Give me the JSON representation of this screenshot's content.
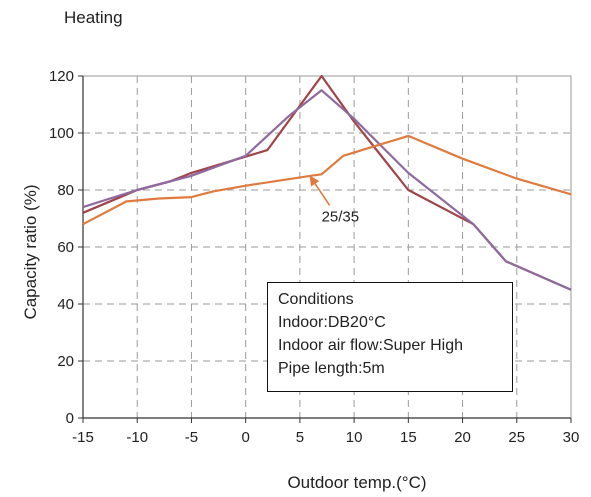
{
  "chart_data": {
    "type": "line",
    "title": "Heating",
    "xlabel": "Outdoor temp.(°C)",
    "ylabel": "Capacity ratio (%)",
    "xlim": [
      -15,
      30
    ],
    "ylim": [
      0,
      120
    ],
    "xticks": [
      -15,
      -10,
      -5,
      0,
      5,
      10,
      15,
      20,
      25,
      30
    ],
    "yticks": [
      0,
      20,
      40,
      60,
      80,
      100,
      120
    ],
    "grid": true,
    "series": [
      {
        "color": "#a0444a",
        "points": [
          [
            -15,
            72
          ],
          [
            -10,
            80
          ],
          [
            -7,
            83
          ],
          [
            -5,
            86
          ],
          [
            2,
            94
          ],
          [
            7,
            120
          ],
          [
            10,
            104
          ],
          [
            15,
            80
          ],
          [
            21,
            68
          ],
          [
            24,
            55
          ],
          [
            30,
            45
          ]
        ]
      },
      {
        "color": "#8e6a9e",
        "points": [
          [
            -15,
            74
          ],
          [
            -10,
            80
          ],
          [
            -5,
            85
          ],
          [
            0,
            92
          ],
          [
            4,
            106
          ],
          [
            7,
            115
          ],
          [
            10,
            105
          ],
          [
            15,
            86
          ],
          [
            21,
            68
          ],
          [
            24,
            55
          ],
          [
            30,
            45
          ]
        ]
      },
      {
        "color": "#e07b3e",
        "points": [
          [
            -15,
            68
          ],
          [
            -11,
            76
          ],
          [
            -8,
            77
          ],
          [
            -5,
            77.5
          ],
          [
            -3,
            79.5
          ],
          [
            0,
            81.5
          ],
          [
            6,
            85
          ],
          [
            7,
            85.5
          ],
          [
            9,
            92
          ],
          [
            15,
            99
          ],
          [
            20,
            91
          ],
          [
            25,
            84
          ],
          [
            30,
            78.5
          ]
        ]
      }
    ],
    "annotations": [
      {
        "text": "25/35",
        "x": 7,
        "y": 69,
        "arrow_to": [
          6,
          84.5
        ]
      }
    ],
    "conditions": {
      "title": "Conditions",
      "lines": [
        "Indoor:DB20°C",
        "Indoor air flow:Super High",
        "Pipe length:5m"
      ]
    }
  }
}
